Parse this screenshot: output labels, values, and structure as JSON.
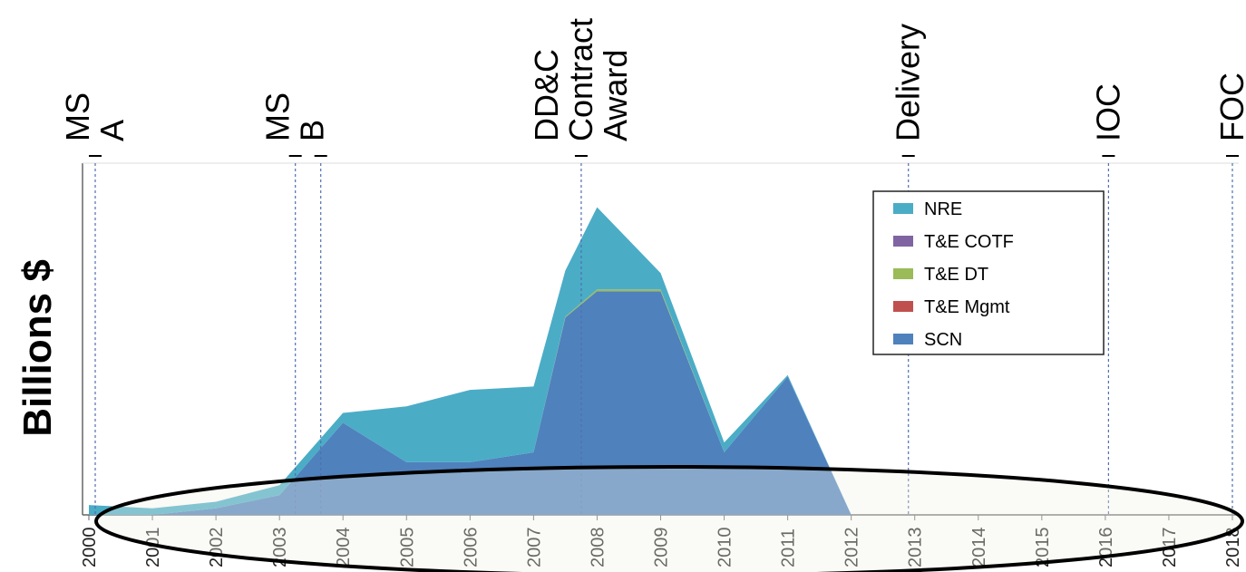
{
  "chart_data": {
    "type": "area",
    "ylabel": "Billions $",
    "xlabel": "",
    "title": "",
    "x": [
      2000,
      2001,
      2002,
      2003,
      2004,
      2005,
      2006,
      2007,
      2008,
      2009,
      2010,
      2011,
      2012,
      2013,
      2014,
      2015,
      2016,
      2017,
      2018
    ],
    "xlim": [
      1999.9,
      2018.1
    ],
    "ylim": [
      0,
      100
    ],
    "series": [
      {
        "name": "SCN",
        "color": "#4F81BD",
        "points": [
          [
            2000,
            0
          ],
          [
            2001,
            0
          ],
          [
            2002,
            2
          ],
          [
            2003,
            6
          ],
          [
            2004,
            28
          ],
          [
            2005,
            16
          ],
          [
            2006,
            16
          ],
          [
            2007,
            19
          ],
          [
            2007.5,
            60
          ],
          [
            2008,
            68
          ],
          [
            2009,
            68
          ],
          [
            2010,
            19
          ],
          [
            2011,
            42
          ],
          [
            2012,
            0
          ],
          [
            2018,
            0
          ]
        ]
      },
      {
        "name": "T&E Mgmt",
        "color": "#C0504D",
        "points": [
          [
            2000,
            0
          ],
          [
            2018,
            0
          ]
        ]
      },
      {
        "name": "T&E DT",
        "color": "#9BBB59",
        "points": [
          [
            2000,
            0
          ],
          [
            2007,
            0
          ],
          [
            2008,
            0.5
          ],
          [
            2009,
            0.5
          ],
          [
            2010,
            0
          ],
          [
            2018,
            0
          ]
        ]
      },
      {
        "name": "T&E COTF",
        "color": "#8064A2",
        "points": [
          [
            2000,
            0
          ],
          [
            2018,
            0
          ]
        ]
      },
      {
        "name": "NRE",
        "color": "#4BACC6",
        "points": [
          [
            2000,
            3
          ],
          [
            2001,
            2
          ],
          [
            2002,
            2
          ],
          [
            2003,
            3
          ],
          [
            2004,
            3
          ],
          [
            2005,
            17
          ],
          [
            2006,
            22
          ],
          [
            2007,
            20
          ],
          [
            2007.5,
            14
          ],
          [
            2008,
            25
          ],
          [
            2009,
            5
          ],
          [
            2010,
            3
          ],
          [
            2011,
            0.5
          ],
          [
            2012,
            0
          ],
          [
            2018,
            0
          ]
        ]
      }
    ],
    "legend": {
      "placement": "top-right",
      "order": [
        "NRE",
        "T&E COTF",
        "T&E DT",
        "T&E Mgmt",
        "SCN"
      ]
    },
    "milestones": [
      {
        "label": [
          "MS",
          "A"
        ],
        "year": 2000.1
      },
      {
        "label": [
          "MS",
          "B"
        ],
        "year": 2003.25
      },
      {
        "label": [
          "MS",
          "B"
        ],
        "year": 2003.65,
        "hide_text": true
      },
      {
        "label": [
          "DD&C",
          "Contract",
          "Award"
        ],
        "year": 2007.75
      },
      {
        "label": [
          "Delivery"
        ],
        "year": 2012.9
      },
      {
        "label": [
          "IOC"
        ],
        "year": 2016.05
      },
      {
        "label": [
          "FOC"
        ],
        "year": 2018.0
      }
    ],
    "x_tick_labels": [
      "2000",
      "2001",
      "2002",
      "2003",
      "2004",
      "2005",
      "2006",
      "2007",
      "2008",
      "2009",
      "2010",
      "2011",
      "2012",
      "2013",
      "2014",
      "2015",
      "2016",
      "2017",
      "2018"
    ],
    "grid": false,
    "annotations": [
      {
        "type": "ellipse",
        "description": "highlight around lower region"
      }
    ]
  }
}
